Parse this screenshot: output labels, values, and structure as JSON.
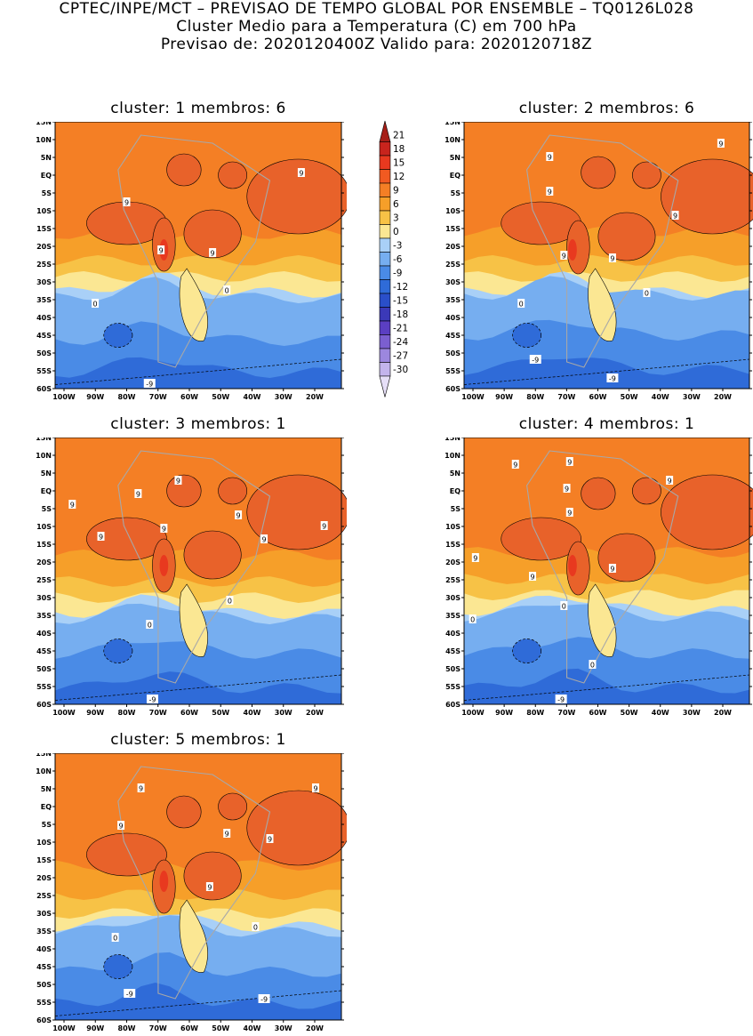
{
  "header": {
    "line1": "CPTEC/INPE/MCT – PREVISAO DE TEMPO GLOBAL POR ENSEMBLE – TQ0126L028",
    "line2": "Cluster Medio para a Temperatura (C) em 700 hPa",
    "line3": "Previsao de: 2020120400Z   Valido para: 2020120718Z"
  },
  "lat_ticks": [
    "15N",
    "10N",
    "5N",
    "EQ",
    "5S",
    "10S",
    "15S",
    "20S",
    "25S",
    "30S",
    "35S",
    "40S",
    "45S",
    "50S",
    "55S",
    "60S"
  ],
  "lon_ticks": [
    "100W",
    "90W",
    "80W",
    "70W",
    "60W",
    "50W",
    "40W",
    "30W",
    "20W"
  ],
  "colorbar": {
    "labels": [
      "21",
      "18",
      "15",
      "12",
      "9",
      "6",
      "3",
      "0",
      "-3",
      "-6",
      "-9",
      "-12",
      "-15",
      "-18",
      "-21",
      "-24",
      "-27",
      "-30"
    ],
    "colors": [
      "#a61f18",
      "#c8241d",
      "#e8391f",
      "#f15a21",
      "#f47f25",
      "#f69f29",
      "#f7c246",
      "#fbe793",
      "#a9d0f7",
      "#76aef0",
      "#4a8be6",
      "#2f6bd8",
      "#2a4fc9",
      "#3b39b8",
      "#5b3fc2",
      "#7b5fd0",
      "#9c87de",
      "#c3b4ec",
      "#e6dff7"
    ]
  },
  "panels": [
    {
      "title": "cluster: 1   membros: 6",
      "contour_labels": [
        "9",
        "9",
        "9",
        "9",
        "0",
        "0",
        "-9"
      ]
    },
    {
      "title": "cluster: 2   membros: 6",
      "contour_labels": [
        "9",
        "9",
        "9",
        "9",
        "9",
        "9",
        "0",
        "0",
        "-9",
        "-9"
      ]
    },
    {
      "title": "cluster: 3   membros: 1",
      "contour_labels": [
        "9",
        "9",
        "9",
        "9",
        "9",
        "9",
        "9",
        "9",
        "0",
        "0",
        "-9"
      ]
    },
    {
      "title": "cluster: 4   membros: 1",
      "contour_labels": [
        "9",
        "9",
        "9",
        "9",
        "9",
        "9",
        "9",
        "9",
        "0",
        "0",
        "0",
        "-9"
      ]
    },
    {
      "title": "cluster: 5   membros: 1",
      "contour_labels": [
        "9",
        "9",
        "9",
        "9",
        "9",
        "9",
        "0",
        "0",
        "-9",
        "-9"
      ]
    }
  ]
}
